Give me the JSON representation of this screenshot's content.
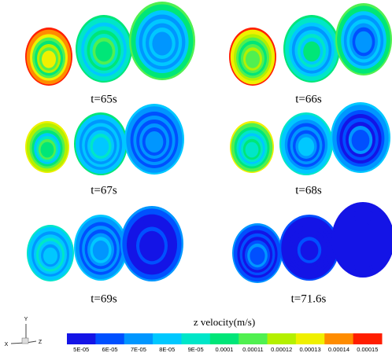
{
  "panels": [
    {
      "label": "t=65s"
    },
    {
      "label": "t=66s"
    },
    {
      "label": "t=67s"
    },
    {
      "label": "t=68s"
    },
    {
      "label": "t=69s"
    },
    {
      "label": "t=71.6s"
    }
  ],
  "colorbar": {
    "title": "z velocity(m/s)",
    "labels": [
      "5E-05",
      "6E-05",
      "7E-05",
      "8E-05",
      "9E-05",
      "0.0001",
      "0.00011",
      "0.00012",
      "0.00013",
      "0.00014",
      "0.00015"
    ]
  },
  "axes": {
    "x": "X",
    "y": "Y",
    "z": "Z"
  }
}
